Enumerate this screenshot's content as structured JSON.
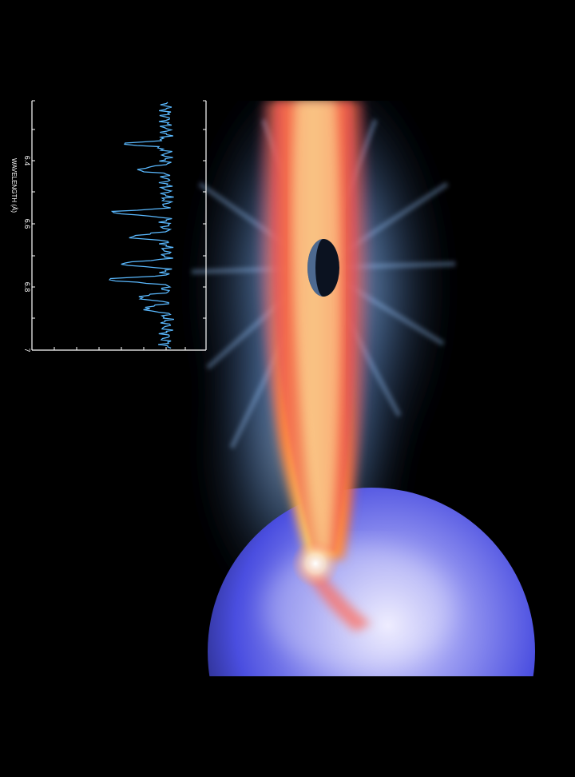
{
  "spectrum": {
    "axis_label": "WAVELENGTH (Å)",
    "ticks": [
      "6.4",
      "6.6",
      "6.8",
      "7"
    ],
    "trace_color": "#5ab9ff"
  },
  "scene": {
    "background": "#000000",
    "disk_colors": [
      "#ffd86a",
      "#ff7a38",
      "#e03a66"
    ],
    "halo_color": "#7fb6ff",
    "star_color": "#4a4ee0"
  }
}
